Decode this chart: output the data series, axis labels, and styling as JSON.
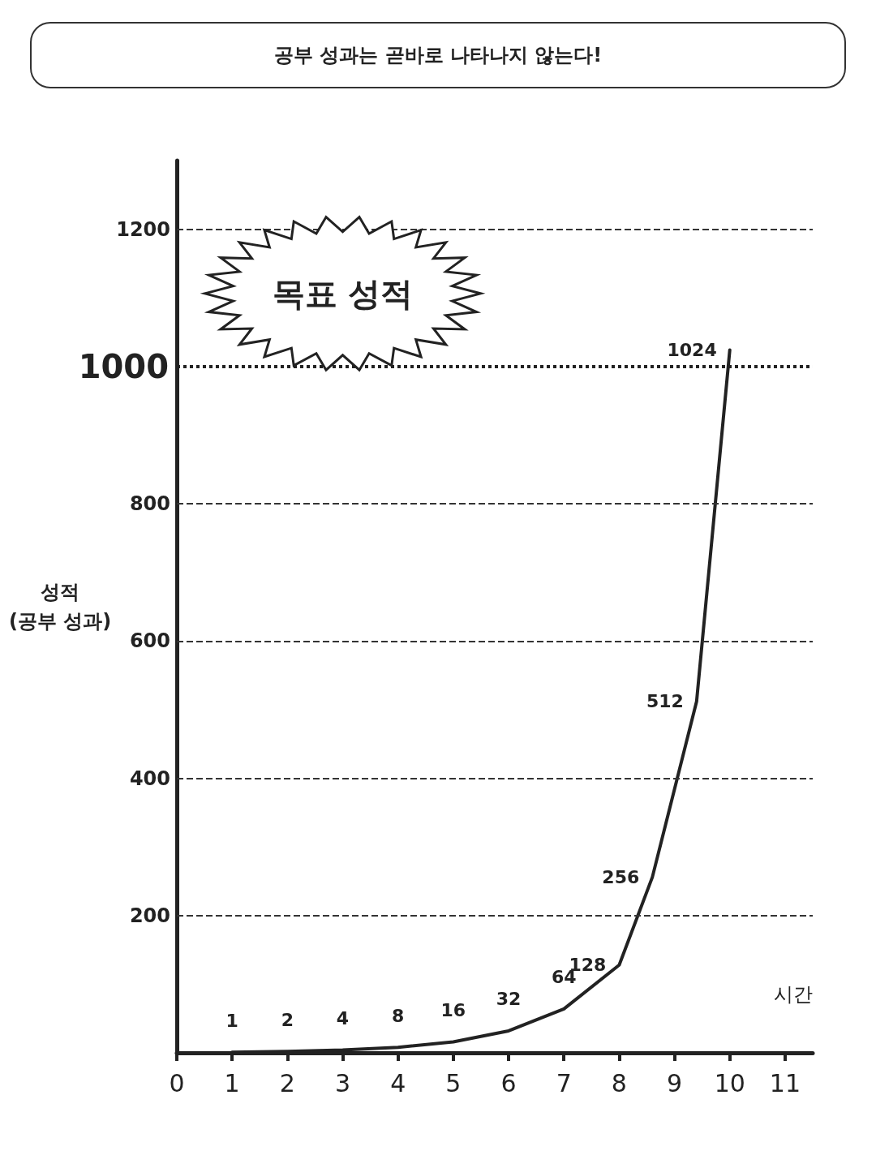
{
  "chart_data": {
    "type": "line",
    "title": "공부 성과는 곧바로 나타나지 않는다!",
    "xlabel": "시간",
    "ylabel": "성적\n(공부 성과)",
    "x": [
      1,
      2,
      3,
      4,
      5,
      6,
      7,
      8,
      8.6,
      9.4,
      10
    ],
    "series": [
      {
        "color": "#222222",
        "values": [
          1,
          2,
          4,
          8,
          16,
          32,
          64,
          128,
          256,
          512,
          1024
        ]
      }
    ],
    "xlim": [
      0,
      11.5
    ],
    "xticks": [
      0,
      1,
      2,
      3,
      4,
      5,
      6,
      7,
      8,
      9,
      10,
      11
    ],
    "ylim": [
      0,
      1300
    ],
    "yticks": [
      200,
      400,
      600,
      800,
      1200
    ],
    "ref_lines": [
      {
        "axis": "y",
        "value": 1000,
        "label": "1000",
        "line_style": "dotted"
      }
    ],
    "annotations": [
      {
        "text": "목표 성적",
        "x": 3,
        "y": 1000
      }
    ],
    "data_labels": true,
    "grid": "y",
    "marker": "none",
    "line_style": "solid"
  }
}
